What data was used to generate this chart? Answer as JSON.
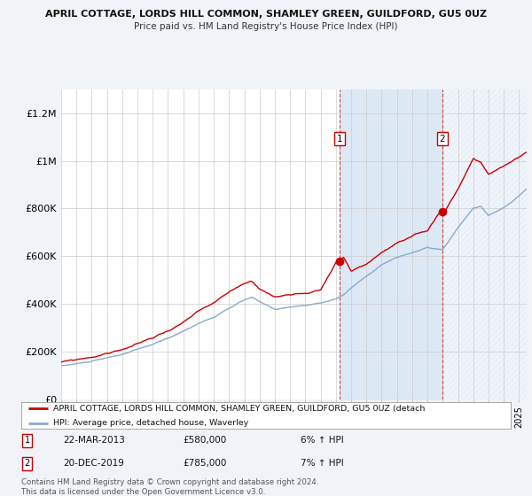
{
  "title": "APRIL COTTAGE, LORDS HILL COMMON, SHAMLEY GREEN, GUILDFORD, GU5 0UZ",
  "subtitle": "Price paid vs. HM Land Registry's House Price Index (HPI)",
  "bg_color": "#f0f4f8",
  "plot_bg_color": "#ffffff",
  "grid_color": "#cccccc",
  "red_color": "#cc0000",
  "blue_color": "#88aacc",
  "shade_color": "#dde8f5",
  "ylim": [
    0,
    1300000
  ],
  "yticks": [
    0,
    200000,
    400000,
    600000,
    800000,
    1000000,
    1200000
  ],
  "ytick_labels": [
    "£0",
    "£200K",
    "£400K",
    "£600K",
    "£800K",
    "£1M",
    "£1.2M"
  ],
  "legend_red": "APRIL COTTAGE, LORDS HILL COMMON, SHAMLEY GREEN, GUILDFORD, GU5 0UZ (detach",
  "legend_blue": "HPI: Average price, detached house, Waverley",
  "footer": "Contains HM Land Registry data © Crown copyright and database right 2024.\nThis data is licensed under the Open Government Licence v3.0.",
  "purchase1_x": 2013.23,
  "purchase2_x": 2019.97,
  "purchase1_y": 580000,
  "purchase2_y": 785000,
  "xmin": 1995,
  "xmax": 2025.5
}
